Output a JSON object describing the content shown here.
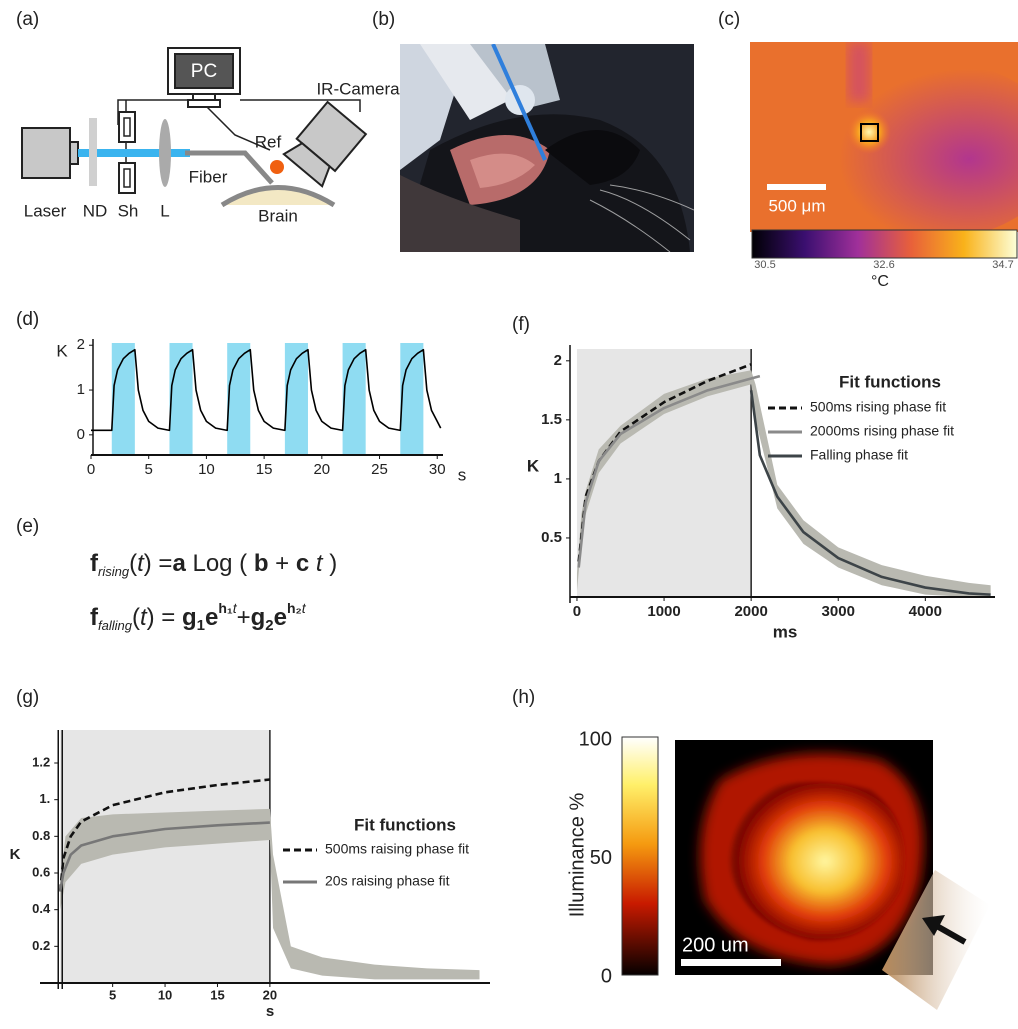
{
  "panel_labels": [
    "(a)",
    "(b)",
    "(c)",
    "(d)",
    "(e)",
    "(f)",
    "(g)",
    "(h)"
  ],
  "setup": {
    "pc": "PC",
    "camera": "IR-Camera",
    "ref": "Ref",
    "fiber": "Fiber",
    "brain": "Brain",
    "laser": "Laser",
    "nd": "ND",
    "shutter": "Sh",
    "lens": "L"
  },
  "thermal": {
    "scale_bar": "500 μm",
    "clim": [
      30.5,
      34.7
    ],
    "colorbar_ticks": [
      30.5,
      32.6,
      34.7
    ],
    "unit": "°C"
  },
  "equations": [
    [
      {
        "text": "f",
        "style": "b"
      },
      {
        "text": "rising",
        "style": "sub"
      },
      {
        "text": "(",
        "style": "n"
      },
      {
        "text": "t",
        "style": "i"
      },
      {
        "text": ") =",
        "style": "n"
      },
      {
        "text": "a",
        "style": "b"
      },
      {
        "text": " Log ( ",
        "style": "n"
      },
      {
        "text": "b",
        "style": "b"
      },
      {
        "text": " + ",
        "style": "n"
      },
      {
        "text": "c",
        "style": "b"
      },
      {
        "text": " t",
        "style": "i"
      },
      {
        "text": " )",
        "style": "n"
      }
    ],
    [
      {
        "text": "f",
        "style": "b"
      },
      {
        "text": "falling",
        "style": "sub"
      },
      {
        "text": "(",
        "style": "n"
      },
      {
        "text": "t",
        "style": "i"
      },
      {
        "text": ") = ",
        "style": "n"
      },
      {
        "text": "g",
        "style": "b"
      },
      {
        "text": "1",
        "style": "bsub"
      },
      {
        "text": "e",
        "style": "b"
      },
      {
        "text": "h₁",
        "style": "sup"
      },
      {
        "text": "t",
        "style": "isup"
      },
      {
        "text": "+",
        "style": "n"
      },
      {
        "text": "g",
        "style": "b"
      },
      {
        "text": "2",
        "style": "bsub"
      },
      {
        "text": "e",
        "style": "b"
      },
      {
        "text": "h₂",
        "style": "sup"
      },
      {
        "text": "t",
        "style": "isup"
      }
    ]
  ],
  "illuminance": {
    "axis_label": "Illuminance %",
    "clim": [
      0,
      100
    ],
    "colorbar_ticks": [
      0,
      50,
      100
    ],
    "scale_bar": "200 um"
  },
  "chart_data": [
    {
      "type": "line",
      "y_label": "K",
      "x_label": "s",
      "x": [
        0,
        1.8,
        2.0,
        2.3,
        2.8,
        3.3,
        3.8,
        4.1,
        4.5,
        5.0,
        5.8,
        6.8,
        7.0,
        7.3,
        7.8,
        8.3,
        8.8,
        9.1,
        9.5,
        10.0,
        10.8,
        11.8,
        12.0,
        12.3,
        12.8,
        13.3,
        13.8,
        14.1,
        14.5,
        15.0,
        15.8,
        16.8,
        17.0,
        17.3,
        17.8,
        18.3,
        18.8,
        19.1,
        19.5,
        20.0,
        20.8,
        21.8,
        22.0,
        22.3,
        22.8,
        23.3,
        23.8,
        24.1,
        24.5,
        25.0,
        25.8,
        26.8,
        27.0,
        27.3,
        27.8,
        28.3,
        28.8,
        29.1,
        29.5,
        30.0,
        30.3
      ],
      "series": [
        {
          "color": "#000000",
          "values": [
            0.1,
            0.1,
            1.1,
            1.45,
            1.7,
            1.82,
            1.9,
            1.0,
            0.55,
            0.3,
            0.15,
            0.1,
            1.1,
            1.45,
            1.7,
            1.82,
            1.9,
            1.0,
            0.55,
            0.3,
            0.15,
            0.1,
            1.1,
            1.45,
            1.7,
            1.82,
            1.9,
            1.0,
            0.55,
            0.3,
            0.15,
            0.1,
            1.1,
            1.45,
            1.7,
            1.82,
            1.9,
            1.0,
            0.55,
            0.3,
            0.15,
            0.1,
            1.1,
            1.45,
            1.7,
            1.82,
            1.9,
            1.0,
            0.55,
            0.3,
            0.15,
            0.1,
            1.1,
            1.45,
            1.7,
            1.82,
            1.9,
            1.0,
            0.55,
            0.3,
            0.15
          ]
        }
      ],
      "shaded": [
        [
          1.8,
          3.8
        ],
        [
          6.8,
          8.8
        ],
        [
          11.8,
          13.8
        ],
        [
          16.8,
          18.8
        ],
        [
          21.8,
          23.8
        ],
        [
          26.8,
          28.8
        ]
      ],
      "shade_color": "#8fdcf2",
      "xlim": [
        0,
        30.5
      ],
      "ylim": [
        -0.45,
        2.05
      ],
      "xticks": [
        0,
        5,
        10,
        15,
        20,
        25,
        30
      ],
      "yticks": [
        0,
        1,
        2
      ]
    },
    {
      "type": "line",
      "y_label": "K",
      "x_label": "ms",
      "legend_title": "Fit functions",
      "shaded": [
        [
          0,
          2000
        ]
      ],
      "shade_color": "#e6e6e6",
      "band": {
        "color": "#b9b9b1",
        "x": [
          0,
          50,
          100,
          250,
          500,
          1000,
          1500,
          2000,
          2050,
          2300,
          2600,
          3000,
          3500,
          4000,
          4500,
          4750
        ],
        "lower": [
          0.05,
          0.45,
          0.7,
          1.05,
          1.3,
          1.55,
          1.7,
          1.8,
          1.5,
          0.75,
          0.45,
          0.25,
          0.1,
          0.02,
          0,
          0
        ],
        "upper": [
          0.2,
          0.7,
          0.9,
          1.25,
          1.45,
          1.72,
          1.85,
          1.92,
          1.8,
          0.95,
          0.65,
          0.42,
          0.27,
          0.18,
          0.12,
          0.1
        ]
      },
      "series": [
        {
          "name": "500ms rising phase fit",
          "color": "#111111",
          "dash": true,
          "x": [
            20,
            100,
            250,
            500,
            1000,
            1500,
            2000
          ],
          "values": [
            0.3,
            0.85,
            1.15,
            1.4,
            1.65,
            1.83,
            1.97
          ]
        },
        {
          "name": "2000ms rising phase fit",
          "color": "#8a8a8a",
          "dash": false,
          "x": [
            20,
            100,
            250,
            500,
            1000,
            1500,
            2000,
            2100
          ],
          "values": [
            0.25,
            0.8,
            1.15,
            1.38,
            1.6,
            1.75,
            1.85,
            1.87
          ]
        },
        {
          "name": "Falling phase fit",
          "color": "#3d4448",
          "dash": false,
          "x": [
            2000,
            2100,
            2300,
            2600,
            3000,
            3500,
            4000,
            4500,
            4750
          ],
          "values": [
            1.75,
            1.2,
            0.85,
            0.55,
            0.33,
            0.17,
            0.08,
            0.03,
            0.02
          ]
        }
      ],
      "xlim": [
        -80,
        4800
      ],
      "ylim": [
        0,
        2.1
      ],
      "xticks": [
        0,
        1000,
        2000,
        3000,
        4000
      ],
      "yticks": [
        0.5,
        1,
        1.5,
        2
      ]
    },
    {
      "type": "line",
      "y_label": "K",
      "x_label": "s",
      "legend_title": "Fit functions",
      "shaded": [
        [
          0,
          20
        ]
      ],
      "shade_color": "#e6e6e6",
      "band": {
        "color": "#b9b9b1",
        "x": [
          0,
          0.5,
          2,
          5,
          10,
          15,
          20,
          20.3,
          22,
          25,
          30,
          35,
          40
        ],
        "lower": [
          0.4,
          0.55,
          0.65,
          0.7,
          0.74,
          0.76,
          0.78,
          0.3,
          0.08,
          0.04,
          0.02,
          0.02,
          0.02
        ],
        "upper": [
          0.55,
          0.8,
          0.9,
          0.92,
          0.93,
          0.94,
          0.95,
          0.7,
          0.2,
          0.14,
          0.1,
          0.08,
          0.07
        ]
      },
      "series": [
        {
          "name": "500ms raising phase fit",
          "color": "#111111",
          "dash": true,
          "x": [
            0,
            0.3,
            1,
            2,
            5,
            10,
            15,
            20
          ],
          "values": [
            0.5,
            0.68,
            0.8,
            0.88,
            0.97,
            1.04,
            1.08,
            1.11
          ]
        },
        {
          "name": "20s raising phase fit",
          "color": "#777777",
          "dash": false,
          "x": [
            0,
            0.3,
            1,
            2,
            5,
            10,
            15,
            20
          ],
          "values": [
            0.5,
            0.6,
            0.7,
            0.75,
            0.8,
            0.84,
            0.86,
            0.875
          ]
        }
      ],
      "xlim": [
        -0.5,
        41
      ],
      "ylim": [
        0,
        1.38
      ],
      "xticks": [
        5,
        10,
        15,
        20
      ],
      "yticks": [
        0.2,
        0.4,
        0.6,
        0.8,
        {
          "value": 1,
          "label": "1."
        },
        1.2
      ]
    }
  ]
}
